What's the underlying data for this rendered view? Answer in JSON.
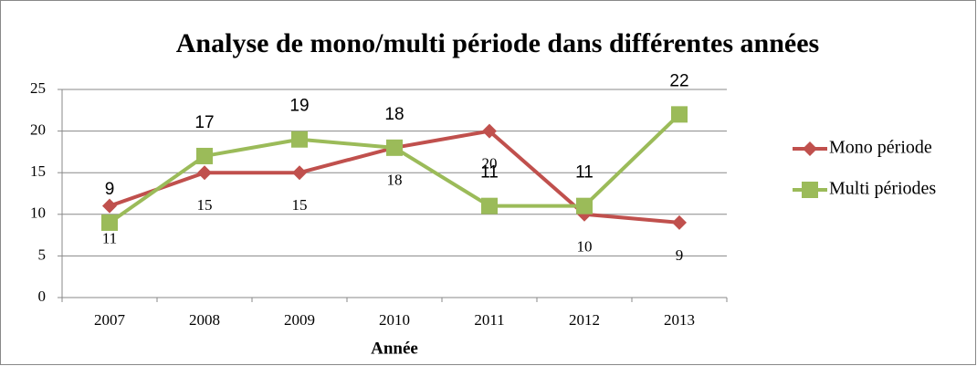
{
  "chart_data": {
    "type": "line",
    "title": "Analyse de mono/multi période dans différentes années",
    "x_label": "Année",
    "categories": [
      "2007",
      "2008",
      "2009",
      "2010",
      "2011",
      "2012",
      "2013"
    ],
    "series": [
      {
        "name": "Mono période",
        "color": "#c0504d",
        "marker": "diamond",
        "values": [
          11,
          15,
          15,
          18,
          20,
          10,
          9
        ]
      },
      {
        "name": "Multi périodes",
        "color": "#9bbb59",
        "marker": "square",
        "values": [
          9,
          17,
          19,
          18,
          11,
          11,
          22
        ]
      }
    ],
    "ylim": [
      0,
      25
    ],
    "yticks": [
      0,
      5,
      10,
      15,
      20,
      25
    ],
    "grid": true,
    "legend": "right"
  }
}
